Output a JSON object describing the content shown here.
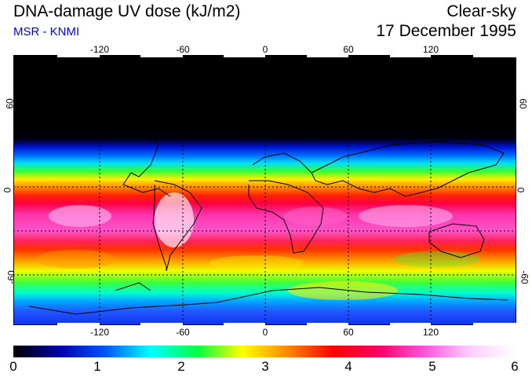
{
  "header": {
    "title": "DNA-damage UV dose (kJ/m2)",
    "source": "MSR - KNMI",
    "condition": "Clear-sky",
    "date": "17 December 1995",
    "source_color": "#0000ee"
  },
  "map": {
    "longitude_ticks": [
      "-120",
      "-60",
      "0",
      "60",
      "120"
    ],
    "latitude_ticks": [
      "60",
      "0",
      "-60"
    ],
    "graticule_color": "#000000"
  },
  "colorbar": {
    "tick_labels": [
      "0",
      "1",
      "2",
      "3",
      "4",
      "5",
      "6"
    ],
    "min": 0,
    "max": 6,
    "colors": [
      "#000000",
      "#0000aa",
      "#0055ff",
      "#00ffff",
      "#00ff44",
      "#ffff00",
      "#ff8800",
      "#ff0000",
      "#ff0066",
      "#ff55dd",
      "#ffd0ff",
      "#ffffff"
    ]
  }
}
